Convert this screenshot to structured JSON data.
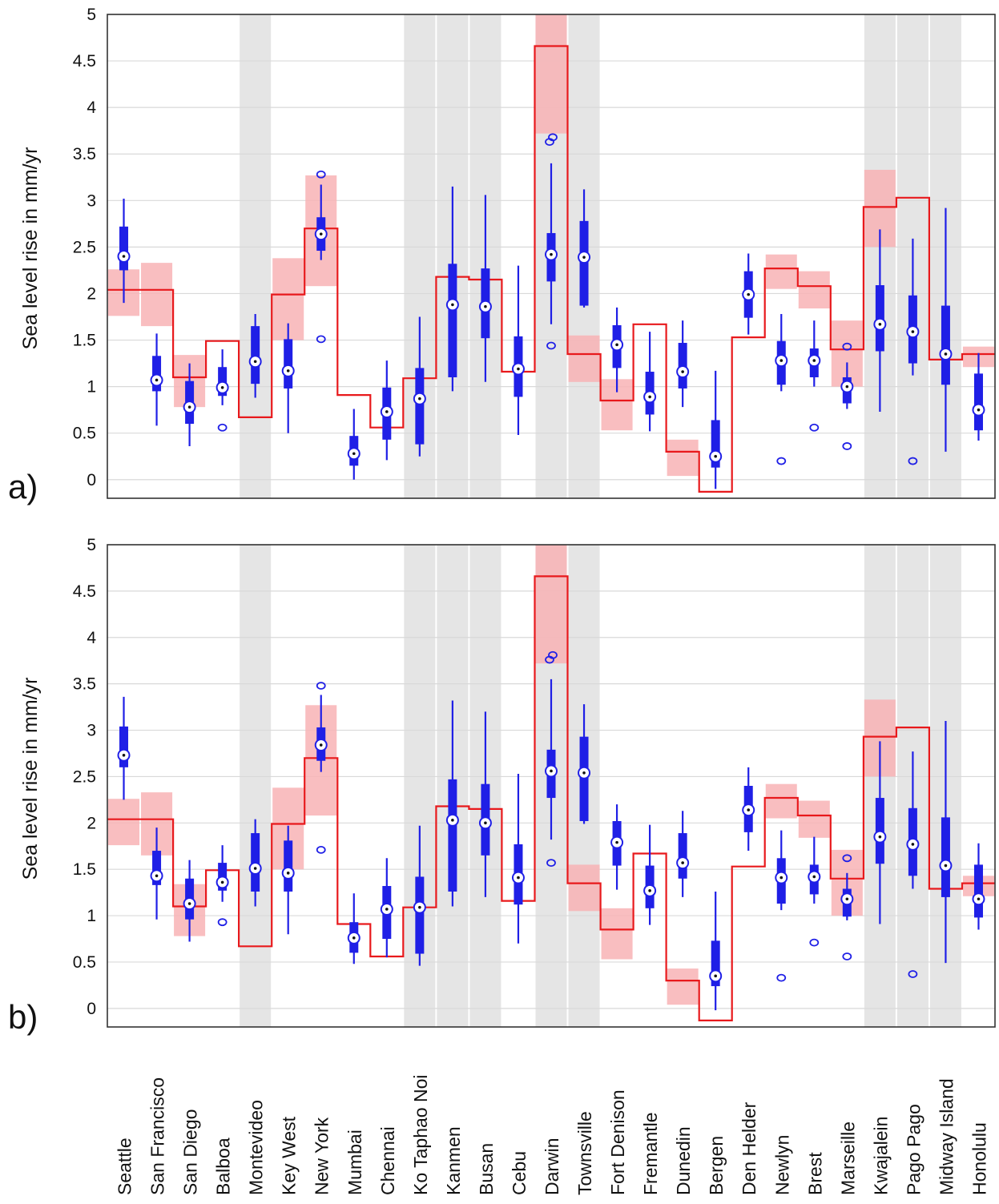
{
  "chart_data": [
    {
      "panel_label": "a)",
      "type": "boxplot-with-step-reference",
      "ylabel": "Sea level rise in mm/yr",
      "ylim": [
        -0.2,
        5
      ],
      "yticks": [
        0,
        0.5,
        1,
        1.5,
        2,
        2.5,
        3,
        3.5,
        4,
        4.5,
        5
      ],
      "grid": "horizontal",
      "colors": {
        "box": "#1f1fe6",
        "reference_line": "#e8191c",
        "reference_band": "#f8b3b5",
        "shade": "#e5e5e5"
      },
      "shaded_stations": [
        "Montevideo",
        "Ko Taphao Noi",
        "Kanmen",
        "Busan",
        "Darwin",
        "Townsville",
        "Kwajalein",
        "Pago Pago",
        "Midway Island"
      ],
      "stations": [
        {
          "name": "Seattle",
          "whisker_low": 1.9,
          "q1": 2.25,
          "median": 2.4,
          "q3": 2.72,
          "whisker_high": 3.02,
          "outliers": [],
          "ref": 2.04,
          "band": [
            1.76,
            2.26
          ]
        },
        {
          "name": "San Francisco",
          "whisker_low": 0.58,
          "q1": 0.95,
          "median": 1.07,
          "q3": 1.33,
          "whisker_high": 1.57,
          "outliers": [],
          "ref": 2.04,
          "band": [
            1.65,
            2.33
          ]
        },
        {
          "name": "San Diego",
          "whisker_low": 0.36,
          "q1": 0.6,
          "median": 0.78,
          "q3": 1.06,
          "whisker_high": 1.25,
          "outliers": [],
          "ref": 1.1,
          "band": [
            0.78,
            1.34
          ]
        },
        {
          "name": "Balboa",
          "whisker_low": 0.8,
          "q1": 0.9,
          "median": 0.99,
          "q3": 1.21,
          "whisker_high": 1.4,
          "outliers": [
            0.56
          ],
          "ref": 1.49,
          "band": null
        },
        {
          "name": "Montevideo",
          "whisker_low": 0.88,
          "q1": 1.03,
          "median": 1.27,
          "q3": 1.65,
          "whisker_high": 1.78,
          "outliers": [],
          "ref": 0.67,
          "band": null
        },
        {
          "name": "Key West",
          "whisker_low": 0.5,
          "q1": 0.98,
          "median": 1.17,
          "q3": 1.51,
          "whisker_high": 1.68,
          "outliers": [],
          "ref": 1.99,
          "band": [
            1.5,
            2.38
          ]
        },
        {
          "name": "New York",
          "whisker_low": 2.36,
          "q1": 2.46,
          "median": 2.64,
          "q3": 2.82,
          "whisker_high": 3.17,
          "outliers": [
            3.28,
            1.51
          ],
          "ref": 2.7,
          "band": [
            2.08,
            3.27
          ]
        },
        {
          "name": "Mumbai",
          "whisker_low": 0.0,
          "q1": 0.15,
          "median": 0.28,
          "q3": 0.47,
          "whisker_high": 0.76,
          "outliers": [],
          "ref": 0.91,
          "band": null
        },
        {
          "name": "Chennai",
          "whisker_low": 0.21,
          "q1": 0.43,
          "median": 0.73,
          "q3": 0.99,
          "whisker_high": 1.28,
          "outliers": [],
          "ref": 0.56,
          "band": null
        },
        {
          "name": "Ko Taphao Noi",
          "whisker_low": 0.25,
          "q1": 0.38,
          "median": 0.87,
          "q3": 1.2,
          "whisker_high": 1.75,
          "outliers": [],
          "ref": 1.09,
          "band": null
        },
        {
          "name": "Kanmen",
          "whisker_low": 0.95,
          "q1": 1.1,
          "median": 1.88,
          "q3": 2.32,
          "whisker_high": 3.15,
          "outliers": [],
          "ref": 2.18,
          "band": null
        },
        {
          "name": "Busan",
          "whisker_low": 1.05,
          "q1": 1.52,
          "median": 1.86,
          "q3": 2.27,
          "whisker_high": 3.06,
          "outliers": [],
          "ref": 2.15,
          "band": null
        },
        {
          "name": "Cebu",
          "whisker_low": 0.48,
          "q1": 0.89,
          "median": 1.19,
          "q3": 1.54,
          "whisker_high": 2.3,
          "outliers": [],
          "ref": 1.16,
          "band": null
        },
        {
          "name": "Darwin",
          "whisker_low": 1.67,
          "q1": 2.13,
          "median": 2.42,
          "q3": 2.65,
          "whisker_high": 3.4,
          "outliers": [
            3.68,
            3.63,
            1.44
          ],
          "ref": 4.66,
          "band": [
            3.72,
            5.0
          ]
        },
        {
          "name": "Townsville",
          "whisker_low": 1.85,
          "q1": 1.87,
          "median": 2.39,
          "q3": 2.78,
          "whisker_high": 3.12,
          "outliers": [],
          "ref": 1.35,
          "band": [
            1.05,
            1.55
          ]
        },
        {
          "name": "Fort Denison",
          "whisker_low": 0.94,
          "q1": 1.2,
          "median": 1.45,
          "q3": 1.66,
          "whisker_high": 1.85,
          "outliers": [],
          "ref": 0.85,
          "band": [
            0.53,
            1.08
          ]
        },
        {
          "name": "Fremantle",
          "whisker_low": 0.52,
          "q1": 0.7,
          "median": 0.89,
          "q3": 1.16,
          "whisker_high": 1.59,
          "outliers": [],
          "ref": 1.67,
          "band": null
        },
        {
          "name": "Dunedin",
          "whisker_low": 0.78,
          "q1": 0.98,
          "median": 1.16,
          "q3": 1.47,
          "whisker_high": 1.71,
          "outliers": [],
          "ref": 0.3,
          "band": [
            0.04,
            0.43
          ]
        },
        {
          "name": "Bergen",
          "whisker_low": -0.1,
          "q1": 0.13,
          "median": 0.25,
          "q3": 0.64,
          "whisker_high": 1.17,
          "outliers": [],
          "ref": -0.13,
          "band": null
        },
        {
          "name": "Den Helder",
          "whisker_low": 1.56,
          "q1": 1.74,
          "median": 1.99,
          "q3": 2.24,
          "whisker_high": 2.43,
          "outliers": [],
          "ref": 1.53,
          "band": null
        },
        {
          "name": "Newlyn",
          "whisker_low": 0.95,
          "q1": 1.02,
          "median": 1.28,
          "q3": 1.49,
          "whisker_high": 1.78,
          "outliers": [
            0.2
          ],
          "ref": 2.27,
          "band": [
            2.05,
            2.42
          ]
        },
        {
          "name": "Brest",
          "whisker_low": 1.0,
          "q1": 1.1,
          "median": 1.28,
          "q3": 1.41,
          "whisker_high": 1.71,
          "outliers": [
            0.56
          ],
          "ref": 2.08,
          "band": [
            1.84,
            2.24
          ]
        },
        {
          "name": "Marseille",
          "whisker_low": 0.76,
          "q1": 0.82,
          "median": 1.0,
          "q3": 1.1,
          "whisker_high": 1.26,
          "outliers": [
            1.43,
            0.36
          ],
          "ref": 1.4,
          "band": [
            1.0,
            1.71
          ]
        },
        {
          "name": "Kwajalein",
          "whisker_low": 0.73,
          "q1": 1.38,
          "median": 1.67,
          "q3": 2.09,
          "whisker_high": 2.69,
          "outliers": [],
          "ref": 2.93,
          "band": [
            2.5,
            3.33
          ]
        },
        {
          "name": "Pago Pago",
          "whisker_low": 1.12,
          "q1": 1.25,
          "median": 1.59,
          "q3": 1.98,
          "whisker_high": 2.59,
          "outliers": [
            0.2
          ],
          "ref": 3.03,
          "band": null
        },
        {
          "name": "Midway Island",
          "whisker_low": 0.3,
          "q1": 1.02,
          "median": 1.35,
          "q3": 1.87,
          "whisker_high": 2.92,
          "outliers": [],
          "ref": 1.29,
          "band": null
        },
        {
          "name": "Honolulu",
          "whisker_low": 0.42,
          "q1": 0.53,
          "median": 0.75,
          "q3": 1.14,
          "whisker_high": 1.36,
          "outliers": [],
          "ref": 1.35,
          "band": [
            1.21,
            1.43
          ]
        }
      ]
    },
    {
      "panel_label": "b)",
      "type": "boxplot-with-step-reference",
      "ylabel": "Sea level rise in mm/yr",
      "ylim": [
        -0.2,
        5
      ],
      "yticks": [
        0,
        0.5,
        1,
        1.5,
        2,
        2.5,
        3,
        3.5,
        4,
        4.5,
        5
      ],
      "grid": "horizontal",
      "colors": {
        "box": "#1f1fe6",
        "reference_line": "#e8191c",
        "reference_band": "#f8b3b5",
        "shade": "#e5e5e5"
      },
      "shaded_stations": [
        "Montevideo",
        "Ko Taphao Noi",
        "Kanmen",
        "Busan",
        "Darwin",
        "Townsville",
        "Kwajalein",
        "Pago Pago",
        "Midway Island"
      ],
      "stations": [
        {
          "name": "Seattle",
          "whisker_low": 2.25,
          "q1": 2.6,
          "median": 2.73,
          "q3": 3.04,
          "whisker_high": 3.36,
          "outliers": [],
          "ref": 2.04,
          "band": [
            1.76,
            2.26
          ]
        },
        {
          "name": "San Francisco",
          "whisker_low": 0.96,
          "q1": 1.33,
          "median": 1.43,
          "q3": 1.7,
          "whisker_high": 1.95,
          "outliers": [],
          "ref": 2.04,
          "band": [
            1.65,
            2.33
          ]
        },
        {
          "name": "San Diego",
          "whisker_low": 0.72,
          "q1": 0.96,
          "median": 1.13,
          "q3": 1.4,
          "whisker_high": 1.6,
          "outliers": [],
          "ref": 1.1,
          "band": [
            0.78,
            1.34
          ]
        },
        {
          "name": "Balboa",
          "whisker_low": 1.15,
          "q1": 1.27,
          "median": 1.36,
          "q3": 1.57,
          "whisker_high": 1.76,
          "outliers": [
            0.93
          ],
          "ref": 1.49,
          "band": null
        },
        {
          "name": "Montevideo",
          "whisker_low": 1.1,
          "q1": 1.26,
          "median": 1.51,
          "q3": 1.89,
          "whisker_high": 2.04,
          "outliers": [],
          "ref": 0.67,
          "band": null
        },
        {
          "name": "Key West",
          "whisker_low": 0.8,
          "q1": 1.26,
          "median": 1.46,
          "q3": 1.81,
          "whisker_high": 1.97,
          "outliers": [],
          "ref": 1.99,
          "band": [
            1.5,
            2.38
          ]
        },
        {
          "name": "New York",
          "whisker_low": 2.55,
          "q1": 2.67,
          "median": 2.84,
          "q3": 3.03,
          "whisker_high": 3.38,
          "outliers": [
            3.48,
            1.71
          ],
          "ref": 2.7,
          "band": [
            2.08,
            3.27
          ]
        },
        {
          "name": "Mumbai",
          "whisker_low": 0.48,
          "q1": 0.6,
          "median": 0.76,
          "q3": 0.93,
          "whisker_high": 1.24,
          "outliers": [],
          "ref": 0.91,
          "band": null
        },
        {
          "name": "Chennai",
          "whisker_low": 0.55,
          "q1": 0.75,
          "median": 1.07,
          "q3": 1.32,
          "whisker_high": 1.62,
          "outliers": [],
          "ref": 0.56,
          "band": null
        },
        {
          "name": "Ko Taphao Noi",
          "whisker_low": 0.46,
          "q1": 0.59,
          "median": 1.09,
          "q3": 1.42,
          "whisker_high": 1.97,
          "outliers": [],
          "ref": 1.09,
          "band": null
        },
        {
          "name": "Kanmen",
          "whisker_low": 1.1,
          "q1": 1.26,
          "median": 2.03,
          "q3": 2.47,
          "whisker_high": 3.32,
          "outliers": [],
          "ref": 2.18,
          "band": null
        },
        {
          "name": "Busan",
          "whisker_low": 1.2,
          "q1": 1.65,
          "median": 2.0,
          "q3": 2.42,
          "whisker_high": 3.2,
          "outliers": [],
          "ref": 2.15,
          "band": null
        },
        {
          "name": "Cebu",
          "whisker_low": 0.7,
          "q1": 1.12,
          "median": 1.41,
          "q3": 1.77,
          "whisker_high": 2.53,
          "outliers": [],
          "ref": 1.16,
          "band": null
        },
        {
          "name": "Darwin",
          "whisker_low": 1.82,
          "q1": 2.27,
          "median": 2.56,
          "q3": 2.79,
          "whisker_high": 3.55,
          "outliers": [
            3.81,
            3.76,
            1.57
          ],
          "ref": 4.66,
          "band": [
            3.72,
            5.0
          ]
        },
        {
          "name": "Townsville",
          "whisker_low": 1.99,
          "q1": 2.02,
          "median": 2.54,
          "q3": 2.93,
          "whisker_high": 3.28,
          "outliers": [],
          "ref": 1.35,
          "band": [
            1.05,
            1.55
          ]
        },
        {
          "name": "Fort Denison",
          "whisker_low": 1.28,
          "q1": 1.54,
          "median": 1.79,
          "q3": 2.02,
          "whisker_high": 2.2,
          "outliers": [],
          "ref": 0.85,
          "band": [
            0.53,
            1.08
          ]
        },
        {
          "name": "Fremantle",
          "whisker_low": 0.9,
          "q1": 1.08,
          "median": 1.27,
          "q3": 1.54,
          "whisker_high": 1.98,
          "outliers": [],
          "ref": 1.67,
          "band": null
        },
        {
          "name": "Dunedin",
          "whisker_low": 1.2,
          "q1": 1.4,
          "median": 1.57,
          "q3": 1.89,
          "whisker_high": 2.13,
          "outliers": [],
          "ref": 0.3,
          "band": [
            0.04,
            0.43
          ]
        },
        {
          "name": "Bergen",
          "whisker_low": -0.02,
          "q1": 0.24,
          "median": 0.35,
          "q3": 0.73,
          "whisker_high": 1.26,
          "outliers": [],
          "ref": -0.13,
          "band": null
        },
        {
          "name": "Den Helder",
          "whisker_low": 1.7,
          "q1": 1.9,
          "median": 2.14,
          "q3": 2.4,
          "whisker_high": 2.6,
          "outliers": [],
          "ref": 1.53,
          "band": null
        },
        {
          "name": "Newlyn",
          "whisker_low": 1.06,
          "q1": 1.13,
          "median": 1.41,
          "q3": 1.62,
          "whisker_high": 1.92,
          "outliers": [
            0.33
          ],
          "ref": 2.27,
          "band": [
            2.05,
            2.42
          ]
        },
        {
          "name": "Brest",
          "whisker_low": 1.13,
          "q1": 1.23,
          "median": 1.42,
          "q3": 1.55,
          "whisker_high": 1.85,
          "outliers": [
            0.71
          ],
          "ref": 2.08,
          "band": [
            1.84,
            2.24
          ]
        },
        {
          "name": "Marseille",
          "whisker_low": 0.95,
          "q1": 0.99,
          "median": 1.18,
          "q3": 1.29,
          "whisker_high": 1.46,
          "outliers": [
            1.62,
            0.56
          ],
          "ref": 1.4,
          "band": [
            1.0,
            1.71
          ]
        },
        {
          "name": "Kwajalein",
          "whisker_low": 0.91,
          "q1": 1.56,
          "median": 1.85,
          "q3": 2.27,
          "whisker_high": 2.88,
          "outliers": [],
          "ref": 2.93,
          "band": [
            2.5,
            3.33
          ]
        },
        {
          "name": "Pago Pago",
          "whisker_low": 1.29,
          "q1": 1.43,
          "median": 1.77,
          "q3": 2.16,
          "whisker_high": 2.77,
          "outliers": [
            0.37
          ],
          "ref": 3.03,
          "band": null
        },
        {
          "name": "Midway Island",
          "whisker_low": 0.49,
          "q1": 1.2,
          "median": 1.54,
          "q3": 2.06,
          "whisker_high": 3.1,
          "outliers": [],
          "ref": 1.29,
          "band": null
        },
        {
          "name": "Honolulu",
          "whisker_low": 0.85,
          "q1": 0.98,
          "median": 1.18,
          "q3": 1.55,
          "whisker_high": 1.78,
          "outliers": [],
          "ref": 1.35,
          "band": [
            1.21,
            1.43
          ]
        }
      ]
    }
  ]
}
